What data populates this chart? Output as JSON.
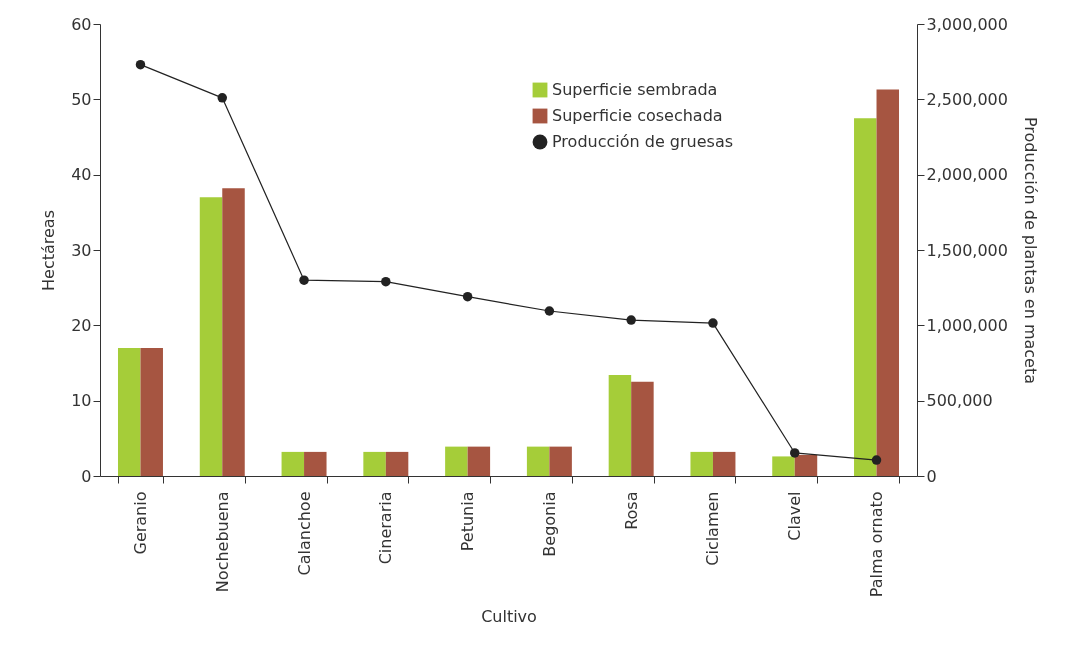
{
  "chart_data": {
    "type": "bar",
    "xlabel": "Cultivo",
    "ylabel": "Hectáreas",
    "y2label": "Producción de plantas en maceta",
    "categories": [
      "Geranio",
      "Nochebuena",
      "Calanchoe",
      "Cineraria",
      "Petunia",
      "Begonia",
      "Rosa",
      "Ciclamen",
      "Clavel",
      "Palma ornato"
    ],
    "series": [
      {
        "name": "Superficie sembrada",
        "color": "#a5cd39",
        "values": [
          17,
          37,
          3.2,
          3.2,
          3.9,
          3.9,
          13.4,
          3.2,
          2.6,
          47.5
        ]
      },
      {
        "name": "Superficie cosechada",
        "color": "#a65541",
        "values": [
          17,
          38.2,
          3.2,
          3.2,
          3.9,
          3.9,
          12.5,
          3.2,
          2.8,
          51.3
        ]
      },
      {
        "name": "Producción de gruesas",
        "type": "line",
        "axis": "y2",
        "color": "#222222",
        "values": [
          2730000,
          2510000,
          1300000,
          1290000,
          1190000,
          1095000,
          1035000,
          1015000,
          153000,
          106000
        ]
      }
    ],
    "ylim": [
      0,
      60
    ],
    "yticks": [
      0,
      10,
      20,
      30,
      40,
      50,
      60
    ],
    "y2lim": [
      0,
      3000000
    ],
    "y2ticks": [
      0,
      {
        "value": 500000,
        "label": "500,000"
      },
      {
        "value": 1000000,
        "label": "1,000,000"
      },
      {
        "value": 1500000,
        "label": "1,500,000"
      },
      {
        "value": 2000000,
        "label": "2,000,000"
      },
      {
        "value": 2500000,
        "label": "2,500,000"
      },
      {
        "value": 3000000,
        "label": "3,000,000"
      }
    ],
    "marker": "circle",
    "line_style": "solid",
    "legend": "top right"
  }
}
